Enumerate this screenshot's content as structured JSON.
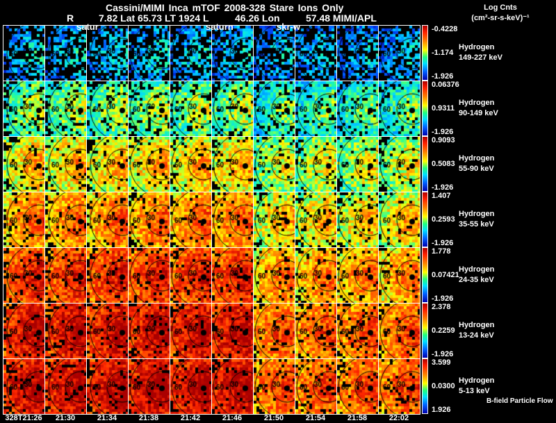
{
  "header": {
    "title": "Cassini/MIMI Inca mTOF  2008-328   Stare   Ions Only",
    "r_label": "R",
    "position": "7.82 Lat 65.73 LT 1924 L",
    "lon": "46.26 Lon",
    "extra": "57.48  MIMI/APL"
  },
  "overlay_labels": [
    "satur",
    "saturn",
    "skr-w"
  ],
  "colorbar_title": {
    "line1": "Log Cnts",
    "line2": "(cm²-sr-s-keV)⁻¹"
  },
  "rows": [
    {
      "species": "Hydrogen",
      "energy": "149-227 keV",
      "max": "-0.4228",
      "mid": "-1.174",
      "min": "-1.926",
      "level": 0.15
    },
    {
      "species": "Hydrogen",
      "energy": "90-149 keV",
      "max": "0.06376",
      "mid": "0.9311",
      "min": "-1.926",
      "level": 0.35
    },
    {
      "species": "Hydrogen",
      "energy": "55-90 keV",
      "max": "0.9093",
      "mid": "0.5083",
      "min": "-1.926",
      "level": 0.5
    },
    {
      "species": "Hydrogen",
      "energy": "35-55 keV",
      "max": "1.407",
      "mid": "0.2593",
      "min": "-1.926",
      "level": 0.6
    },
    {
      "species": "Hydrogen",
      "energy": "24-35 keV",
      "max": "1.778",
      "mid": "0.07421",
      "min": "-1.926",
      "level": 0.72
    },
    {
      "species": "Hydrogen",
      "energy": "13-24 keV",
      "max": "2.378",
      "mid": "0.2259",
      "min": "-1.926",
      "level": 0.8
    },
    {
      "species": "Hydrogen",
      "energy": "5-13 keV",
      "max": "3.599",
      "mid": "0.0300",
      "min": "1.926",
      "level": 0.82
    }
  ],
  "contour_labels": {
    "outer": "60",
    "inner": "30"
  },
  "times": [
    "328T21:26",
    "21:30",
    "21:34",
    "21:38",
    "21:42",
    "21:46",
    "21:50",
    "21:54",
    "21:58",
    "22:02"
  ],
  "footer_note": "B-field Particle Flow"
}
